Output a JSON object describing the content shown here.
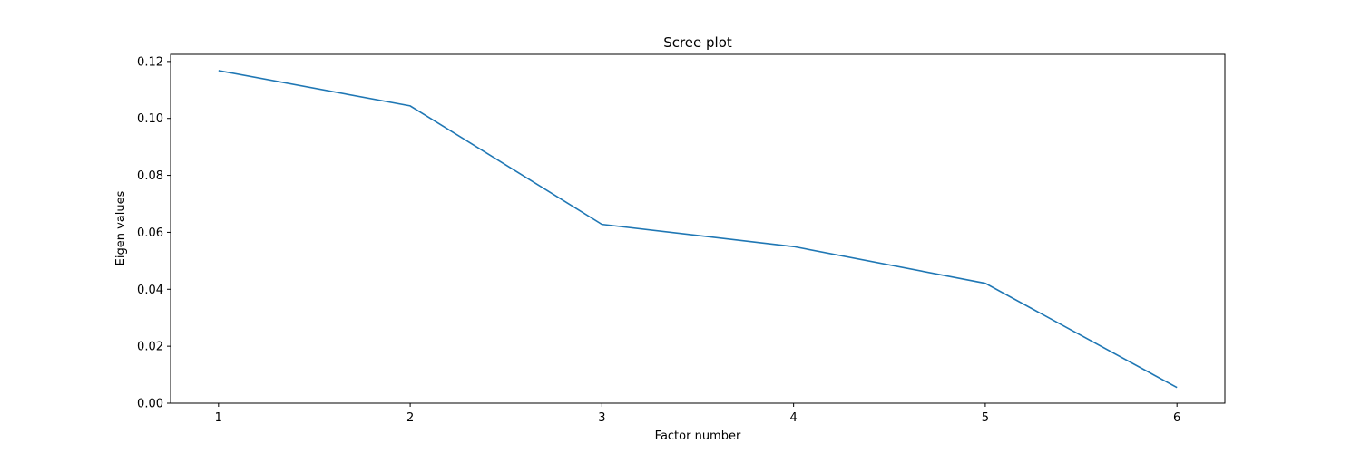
{
  "chart_data": {
    "type": "line",
    "title": "Scree plot",
    "xlabel": "Factor number",
    "ylabel": "Eigen values",
    "x": [
      1,
      2,
      3,
      4,
      5,
      6
    ],
    "series": [
      {
        "values": [
          0.1168,
          0.1044,
          0.0628,
          0.055,
          0.0421,
          0.0055
        ]
      }
    ],
    "xlim": [
      0.75,
      6.25
    ],
    "ylim": [
      0.0,
      0.1225
    ],
    "xticks": [
      1,
      2,
      3,
      4,
      5,
      6
    ],
    "yticks": [
      0.0,
      0.02,
      0.04,
      0.06,
      0.08,
      0.1,
      0.12
    ],
    "ytick_labels": [
      "0.00",
      "0.02",
      "0.04",
      "0.06",
      "0.08",
      "0.10",
      "0.12"
    ],
    "grid": false,
    "line_color": "#1f77b4"
  }
}
